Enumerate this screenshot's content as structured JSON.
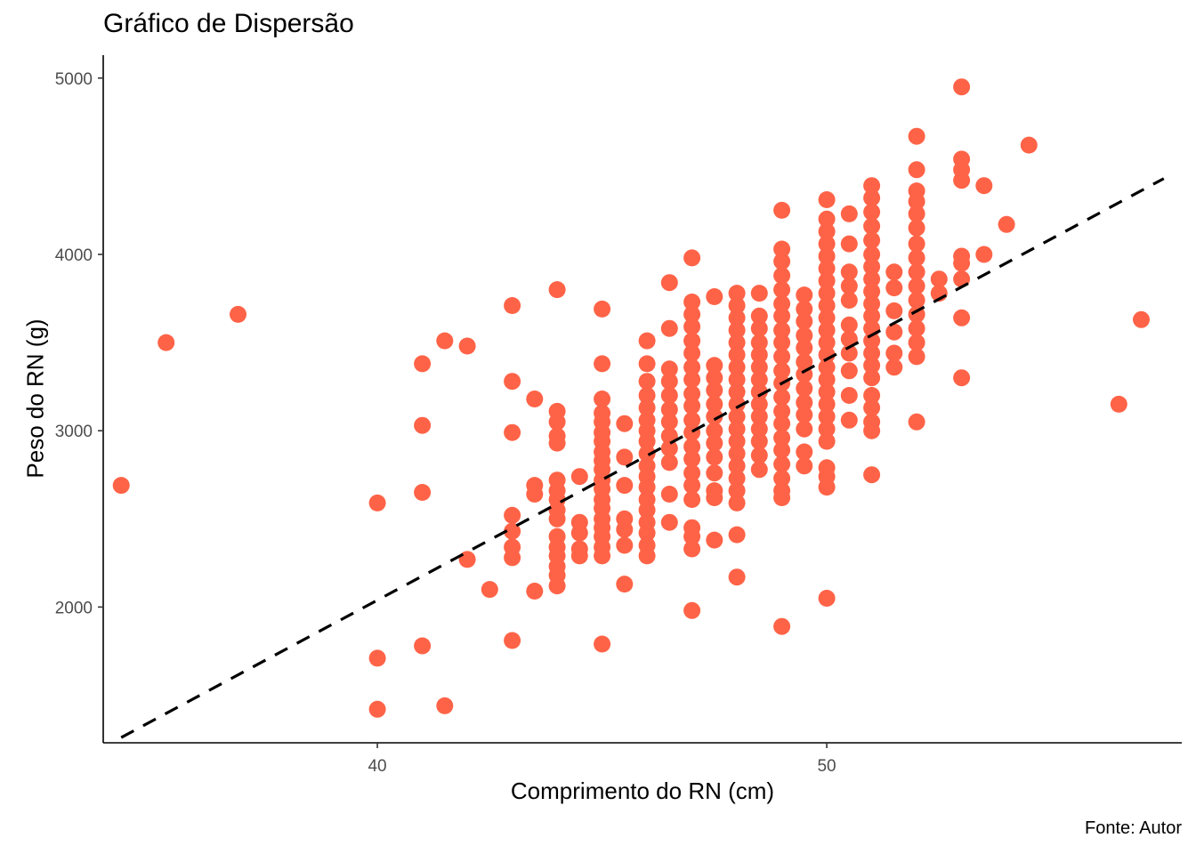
{
  "chart_data": {
    "type": "scatter",
    "title": "Gráfico de Dispersão",
    "xlabel": "Comprimento do RN (cm)",
    "ylabel": "Peso do RN (g)",
    "caption": "Fonte: Autor",
    "xlim": [
      33.9,
      57.9
    ],
    "ylim": [
      1230,
      5130
    ],
    "xticks": [
      40,
      50
    ],
    "yticks": [
      2000,
      3000,
      4000,
      5000
    ],
    "grid": false,
    "point_color": "#FF6347",
    "trend_line": {
      "style": "dashed",
      "color": "#000000",
      "x": [
        34.3,
        57.5
      ],
      "y": [
        1260,
        4430
      ]
    },
    "series": [
      {
        "points": [
          [
            34.3,
            2690
          ],
          [
            35.3,
            3500
          ],
          [
            36.9,
            3660
          ],
          [
            40,
            2590
          ],
          [
            40,
            1710
          ],
          [
            40,
            1420
          ],
          [
            41,
            3380
          ],
          [
            41,
            3030
          ],
          [
            41,
            2650
          ],
          [
            41,
            1780
          ],
          [
            41.5,
            3510
          ],
          [
            41.5,
            1440
          ],
          [
            42,
            3480
          ],
          [
            42,
            2270
          ],
          [
            42.5,
            2100
          ],
          [
            43,
            3710
          ],
          [
            43,
            3280
          ],
          [
            43,
            2990
          ],
          [
            43,
            2520
          ],
          [
            43,
            2430
          ],
          [
            43,
            2340
          ],
          [
            43,
            2280
          ],
          [
            43,
            1810
          ],
          [
            43.5,
            3180
          ],
          [
            43.5,
            2690
          ],
          [
            43.5,
            2640
          ],
          [
            43.5,
            2090
          ],
          [
            44,
            3800
          ],
          [
            44,
            3110
          ],
          [
            44,
            3050
          ],
          [
            44,
            2970
          ],
          [
            44,
            2930
          ],
          [
            44,
            2720
          ],
          [
            44,
            2660
          ],
          [
            44,
            2610
          ],
          [
            44,
            2550
          ],
          [
            44,
            2500
          ],
          [
            44,
            2400
          ],
          [
            44,
            2340
          ],
          [
            44,
            2290
          ],
          [
            44,
            2230
          ],
          [
            44,
            2180
          ],
          [
            44,
            2120
          ],
          [
            44.5,
            2740
          ],
          [
            44.5,
            2480
          ],
          [
            44.5,
            2420
          ],
          [
            44.5,
            2330
          ],
          [
            44.5,
            2290
          ],
          [
            45,
            3690
          ],
          [
            45,
            3380
          ],
          [
            45,
            3180
          ],
          [
            45,
            3100
          ],
          [
            45,
            3050
          ],
          [
            45,
            2990
          ],
          [
            45,
            2940
          ],
          [
            45,
            2880
          ],
          [
            45,
            2830
          ],
          [
            45,
            2780
          ],
          [
            45,
            2720
          ],
          [
            45,
            2670
          ],
          [
            45,
            2610
          ],
          [
            45,
            2560
          ],
          [
            45,
            2500
          ],
          [
            45,
            2450
          ],
          [
            45,
            2400
          ],
          [
            45,
            2340
          ],
          [
            45,
            2290
          ],
          [
            45,
            1790
          ],
          [
            45.5,
            3040
          ],
          [
            45.5,
            2850
          ],
          [
            45.5,
            2690
          ],
          [
            45.5,
            2500
          ],
          [
            45.5,
            2440
          ],
          [
            45.5,
            2350
          ],
          [
            45.5,
            2130
          ],
          [
            46,
            3510
          ],
          [
            46,
            3380
          ],
          [
            46,
            3280
          ],
          [
            46,
            3200
          ],
          [
            46,
            3130
          ],
          [
            46,
            3060
          ],
          [
            46,
            3000
          ],
          [
            46,
            2940
          ],
          [
            46,
            2870
          ],
          [
            46,
            2800
          ],
          [
            46,
            2740
          ],
          [
            46,
            2680
          ],
          [
            46,
            2610
          ],
          [
            46,
            2550
          ],
          [
            46,
            2480
          ],
          [
            46,
            2420
          ],
          [
            46,
            2350
          ],
          [
            46,
            2290
          ],
          [
            46.5,
            3840
          ],
          [
            46.5,
            3580
          ],
          [
            46.5,
            3350
          ],
          [
            46.5,
            3280
          ],
          [
            46.5,
            3200
          ],
          [
            46.5,
            3120
          ],
          [
            46.5,
            3050
          ],
          [
            46.5,
            2970
          ],
          [
            46.5,
            2900
          ],
          [
            46.5,
            2820
          ],
          [
            46.5,
            2640
          ],
          [
            46.5,
            2480
          ],
          [
            47,
            3980
          ],
          [
            47,
            3730
          ],
          [
            47,
            3660
          ],
          [
            47,
            3590
          ],
          [
            47,
            3510
          ],
          [
            47,
            3440
          ],
          [
            47,
            3360
          ],
          [
            47,
            3290
          ],
          [
            47,
            3210
          ],
          [
            47,
            3140
          ],
          [
            47,
            3060
          ],
          [
            47,
            2990
          ],
          [
            47,
            2910
          ],
          [
            47,
            2840
          ],
          [
            47,
            2760
          ],
          [
            47,
            2690
          ],
          [
            47,
            2610
          ],
          [
            47,
            2450
          ],
          [
            47,
            2400
          ],
          [
            47,
            2330
          ],
          [
            47,
            1980
          ],
          [
            47.5,
            3760
          ],
          [
            47.5,
            3370
          ],
          [
            47.5,
            3300
          ],
          [
            47.5,
            3230
          ],
          [
            47.5,
            3150
          ],
          [
            47.5,
            3080
          ],
          [
            47.5,
            3000
          ],
          [
            47.5,
            2930
          ],
          [
            47.5,
            2850
          ],
          [
            47.5,
            2760
          ],
          [
            47.5,
            2660
          ],
          [
            47.5,
            2620
          ],
          [
            47.5,
            2380
          ],
          [
            48,
            3780
          ],
          [
            48,
            3710
          ],
          [
            48,
            3640
          ],
          [
            48,
            3570
          ],
          [
            48,
            3500
          ],
          [
            48,
            3430
          ],
          [
            48,
            3360
          ],
          [
            48,
            3290
          ],
          [
            48,
            3220
          ],
          [
            48,
            3150
          ],
          [
            48,
            3080
          ],
          [
            48,
            3010
          ],
          [
            48,
            2940
          ],
          [
            48,
            2870
          ],
          [
            48,
            2800
          ],
          [
            48,
            2730
          ],
          [
            48,
            2660
          ],
          [
            48,
            2590
          ],
          [
            48,
            2410
          ],
          [
            48,
            2170
          ],
          [
            48.5,
            3780
          ],
          [
            48.5,
            3650
          ],
          [
            48.5,
            3580
          ],
          [
            48.5,
            3500
          ],
          [
            48.5,
            3430
          ],
          [
            48.5,
            3360
          ],
          [
            48.5,
            3290
          ],
          [
            48.5,
            3220
          ],
          [
            48.5,
            3150
          ],
          [
            48.5,
            3080
          ],
          [
            48.5,
            3010
          ],
          [
            48.5,
            2940
          ],
          [
            48.5,
            2860
          ],
          [
            48.5,
            2780
          ],
          [
            49,
            4250
          ],
          [
            49,
            4030
          ],
          [
            49,
            3960
          ],
          [
            49,
            3880
          ],
          [
            49,
            3800
          ],
          [
            49,
            3720
          ],
          [
            49,
            3650
          ],
          [
            49,
            3570
          ],
          [
            49,
            3500
          ],
          [
            49,
            3420
          ],
          [
            49,
            3340
          ],
          [
            49,
            3270
          ],
          [
            49,
            3190
          ],
          [
            49,
            3110
          ],
          [
            49,
            3040
          ],
          [
            49,
            2960
          ],
          [
            49,
            2890
          ],
          [
            49,
            2810
          ],
          [
            49,
            2730
          ],
          [
            49,
            2660
          ],
          [
            49,
            2620
          ],
          [
            49,
            1890
          ],
          [
            49.5,
            3770
          ],
          [
            49.5,
            3690
          ],
          [
            49.5,
            3620
          ],
          [
            49.5,
            3540
          ],
          [
            49.5,
            3470
          ],
          [
            49.5,
            3390
          ],
          [
            49.5,
            3320
          ],
          [
            49.5,
            3240
          ],
          [
            49.5,
            3160
          ],
          [
            49.5,
            3090
          ],
          [
            49.5,
            3010
          ],
          [
            49.5,
            2880
          ],
          [
            49.5,
            2800
          ],
          [
            50,
            4310
          ],
          [
            50,
            4200
          ],
          [
            50,
            4130
          ],
          [
            50,
            4060
          ],
          [
            50,
            3990
          ],
          [
            50,
            3920
          ],
          [
            50,
            3850
          ],
          [
            50,
            3780
          ],
          [
            50,
            3710
          ],
          [
            50,
            3640
          ],
          [
            50,
            3570
          ],
          [
            50,
            3500
          ],
          [
            50,
            3430
          ],
          [
            50,
            3360
          ],
          [
            50,
            3290
          ],
          [
            50,
            3220
          ],
          [
            50,
            3150
          ],
          [
            50,
            3080
          ],
          [
            50,
            3010
          ],
          [
            50,
            2940
          ],
          [
            50,
            2790
          ],
          [
            50,
            2740
          ],
          [
            50,
            2680
          ],
          [
            50,
            2050
          ],
          [
            50.5,
            4230
          ],
          [
            50.5,
            4060
          ],
          [
            50.5,
            3900
          ],
          [
            50.5,
            3820
          ],
          [
            50.5,
            3740
          ],
          [
            50.5,
            3600
          ],
          [
            50.5,
            3520
          ],
          [
            50.5,
            3440
          ],
          [
            50.5,
            3340
          ],
          [
            50.5,
            3200
          ],
          [
            50.5,
            3060
          ],
          [
            51,
            4390
          ],
          [
            51,
            4320
          ],
          [
            51,
            4240
          ],
          [
            51,
            4160
          ],
          [
            51,
            4080
          ],
          [
            51,
            4000
          ],
          [
            51,
            3930
          ],
          [
            51,
            3860
          ],
          [
            51,
            3790
          ],
          [
            51,
            3720
          ],
          [
            51,
            3650
          ],
          [
            51,
            3580
          ],
          [
            51,
            3510
          ],
          [
            51,
            3440
          ],
          [
            51,
            3370
          ],
          [
            51,
            3300
          ],
          [
            51,
            3200
          ],
          [
            51,
            3130
          ],
          [
            51,
            3050
          ],
          [
            51,
            3000
          ],
          [
            51,
            2750
          ],
          [
            51.5,
            3900
          ],
          [
            51.5,
            3810
          ],
          [
            51.5,
            3680
          ],
          [
            51.5,
            3560
          ],
          [
            51.5,
            3440
          ],
          [
            51.5,
            3360
          ],
          [
            52,
            4670
          ],
          [
            52,
            4480
          ],
          [
            52,
            4360
          ],
          [
            52,
            4300
          ],
          [
            52,
            4230
          ],
          [
            52,
            4150
          ],
          [
            52,
            4060
          ],
          [
            52,
            3980
          ],
          [
            52,
            3900
          ],
          [
            52,
            3820
          ],
          [
            52,
            3740
          ],
          [
            52,
            3660
          ],
          [
            52,
            3580
          ],
          [
            52,
            3500
          ],
          [
            52,
            3420
          ],
          [
            52,
            3050
          ],
          [
            52.5,
            3860
          ],
          [
            52.5,
            3780
          ],
          [
            53,
            4950
          ],
          [
            53,
            4540
          ],
          [
            53,
            4480
          ],
          [
            53,
            4420
          ],
          [
            53,
            3990
          ],
          [
            53,
            3950
          ],
          [
            53,
            3860
          ],
          [
            53,
            3640
          ],
          [
            53,
            3300
          ],
          [
            53.5,
            4390
          ],
          [
            53.5,
            4000
          ],
          [
            54,
            4170
          ],
          [
            54.5,
            4620
          ],
          [
            56.5,
            3150
          ],
          [
            57,
            3630
          ]
        ]
      }
    ]
  }
}
